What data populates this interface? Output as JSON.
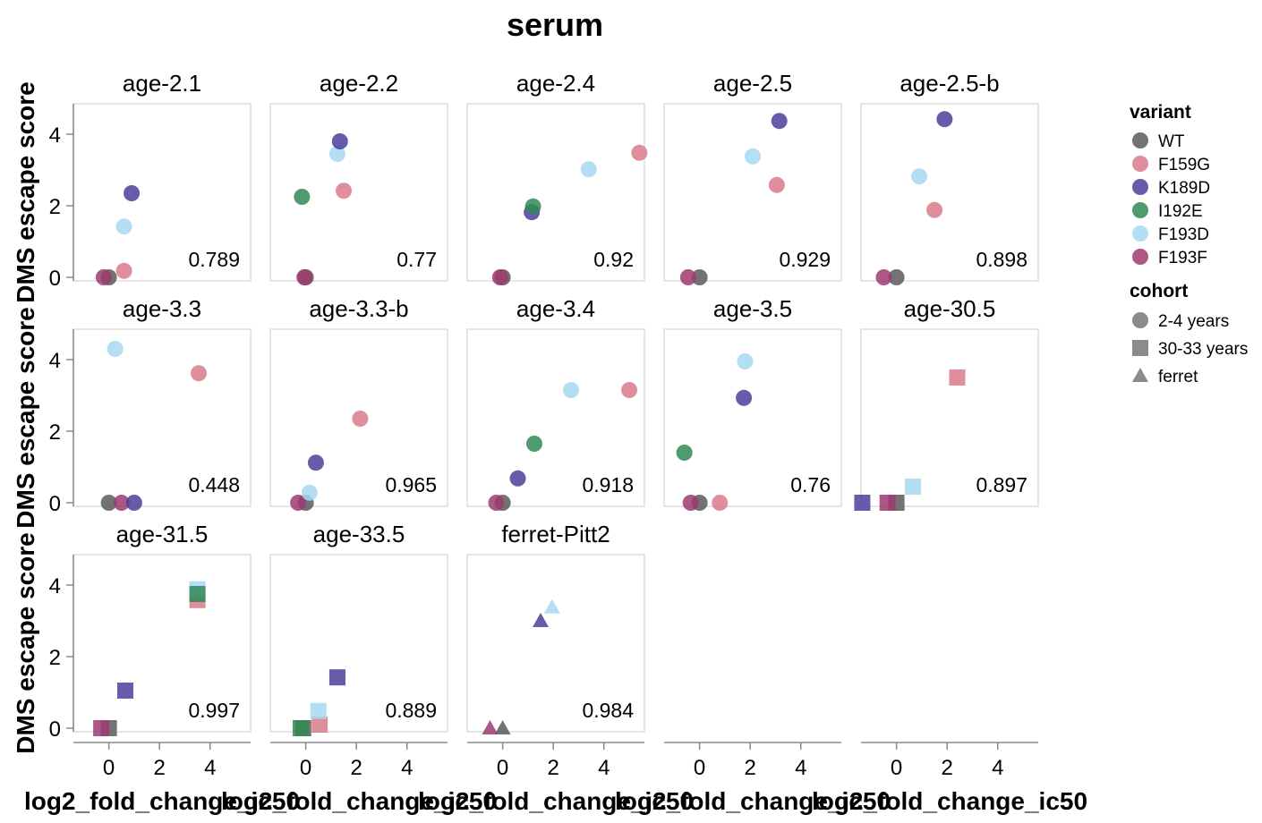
{
  "chart_data": {
    "type": "scatter",
    "title": "serum",
    "xlabel": "log2_fold_change_ic50",
    "ylabel": "DMS escape score",
    "xlim": [
      -1.4,
      5.6
    ],
    "ylim": [
      0,
      4.5
    ],
    "x_ticks": [
      0,
      2,
      4
    ],
    "y_ticks": [
      0,
      2,
      4
    ],
    "grid": false,
    "legend_position": "right",
    "variant_legend_title": "variant",
    "cohort_legend_title": "cohort",
    "variants": [
      {
        "name": "WT",
        "color": "#5a5a5a"
      },
      {
        "name": "F159G",
        "color": "#d97a8b"
      },
      {
        "name": "K189D",
        "color": "#4b3f9a"
      },
      {
        "name": "I192E",
        "color": "#2f8a55"
      },
      {
        "name": "F193D",
        "color": "#a6d8f2"
      },
      {
        "name": "F193F",
        "color": "#9e3a70"
      }
    ],
    "cohorts": [
      {
        "name": "2-4 years",
        "shape": "circle"
      },
      {
        "name": "30-33 years",
        "shape": "square"
      },
      {
        "name": "ferret",
        "shape": "triangle"
      }
    ],
    "panels": [
      {
        "name": "age-2.1",
        "cohort": "2-4 years",
        "corr": "0.789",
        "points": [
          {
            "variant": "WT",
            "x": 0.0,
            "y": 0.0
          },
          {
            "variant": "F193F",
            "x": -0.2,
            "y": 0.0
          },
          {
            "variant": "F159G",
            "x": 0.6,
            "y": 0.18
          },
          {
            "variant": "F193D",
            "x": 0.6,
            "y": 1.42
          },
          {
            "variant": "K189D",
            "x": 0.9,
            "y": 2.35
          }
        ]
      },
      {
        "name": "age-2.2",
        "cohort": "2-4 years",
        "corr": "0.77",
        "points": [
          {
            "variant": "WT",
            "x": 0.0,
            "y": 0.0
          },
          {
            "variant": "F193F",
            "x": -0.05,
            "y": 0.0
          },
          {
            "variant": "I192E",
            "x": -0.15,
            "y": 2.25
          },
          {
            "variant": "F159G",
            "x": 1.5,
            "y": 2.42
          },
          {
            "variant": "F193D",
            "x": 1.25,
            "y": 3.45
          },
          {
            "variant": "K189D",
            "x": 1.35,
            "y": 3.8
          }
        ]
      },
      {
        "name": "age-2.4",
        "cohort": "2-4 years",
        "corr": "0.92",
        "points": [
          {
            "variant": "WT",
            "x": 0.0,
            "y": 0.0
          },
          {
            "variant": "F193F",
            "x": -0.1,
            "y": 0.0
          },
          {
            "variant": "K189D",
            "x": 1.15,
            "y": 1.82
          },
          {
            "variant": "I192E",
            "x": 1.2,
            "y": 1.98
          },
          {
            "variant": "F193D",
            "x": 3.4,
            "y": 3.02
          },
          {
            "variant": "F159G",
            "x": 5.4,
            "y": 3.48
          }
        ]
      },
      {
        "name": "age-2.5",
        "cohort": "2-4 years",
        "corr": "0.929",
        "points": [
          {
            "variant": "WT",
            "x": 0.0,
            "y": 0.0
          },
          {
            "variant": "F193F",
            "x": -0.45,
            "y": 0.0
          },
          {
            "variant": "F159G",
            "x": 3.05,
            "y": 2.58
          },
          {
            "variant": "F193D",
            "x": 2.1,
            "y": 3.38
          },
          {
            "variant": "K189D",
            "x": 3.15,
            "y": 4.37
          }
        ]
      },
      {
        "name": "age-2.5-b",
        "cohort": "2-4 years",
        "corr": "0.898",
        "points": [
          {
            "variant": "WT",
            "x": 0.0,
            "y": 0.0
          },
          {
            "variant": "F193F",
            "x": -0.5,
            "y": 0.0
          },
          {
            "variant": "F159G",
            "x": 1.5,
            "y": 1.88
          },
          {
            "variant": "F193D",
            "x": 0.9,
            "y": 2.82
          },
          {
            "variant": "K189D",
            "x": 1.9,
            "y": 4.42
          }
        ]
      },
      {
        "name": "age-3.3",
        "cohort": "2-4 years",
        "corr": "0.448",
        "points": [
          {
            "variant": "WT",
            "x": 0.0,
            "y": 0.0
          },
          {
            "variant": "F193F",
            "x": 0.5,
            "y": 0.0
          },
          {
            "variant": "K189D",
            "x": 1.0,
            "y": 0.0
          },
          {
            "variant": "F193D",
            "x": 0.25,
            "y": 4.3
          },
          {
            "variant": "F159G",
            "x": 3.55,
            "y": 3.62
          }
        ]
      },
      {
        "name": "age-3.3-b",
        "cohort": "2-4 years",
        "corr": "0.965",
        "points": [
          {
            "variant": "WT",
            "x": 0.0,
            "y": 0.0
          },
          {
            "variant": "F193F",
            "x": -0.3,
            "y": 0.0
          },
          {
            "variant": "F193D",
            "x": 0.15,
            "y": 0.28
          },
          {
            "variant": "K189D",
            "x": 0.4,
            "y": 1.12
          },
          {
            "variant": "F159G",
            "x": 2.15,
            "y": 2.35
          }
        ]
      },
      {
        "name": "age-3.4",
        "cohort": "2-4 years",
        "corr": "0.918",
        "points": [
          {
            "variant": "WT",
            "x": 0.0,
            "y": 0.0
          },
          {
            "variant": "F193F",
            "x": -0.25,
            "y": 0.0
          },
          {
            "variant": "K189D",
            "x": 0.6,
            "y": 0.68
          },
          {
            "variant": "I192E",
            "x": 1.25,
            "y": 1.65
          },
          {
            "variant": "F193D",
            "x": 2.7,
            "y": 3.15
          },
          {
            "variant": "F159G",
            "x": 5.0,
            "y": 3.15
          }
        ]
      },
      {
        "name": "age-3.5",
        "cohort": "2-4 years",
        "corr": "0.76",
        "points": [
          {
            "variant": "WT",
            "x": 0.0,
            "y": 0.0
          },
          {
            "variant": "F193F",
            "x": -0.35,
            "y": 0.0
          },
          {
            "variant": "F159G",
            "x": 0.8,
            "y": 0.0
          },
          {
            "variant": "I192E",
            "x": -0.6,
            "y": 1.4
          },
          {
            "variant": "K189D",
            "x": 1.75,
            "y": 2.93
          },
          {
            "variant": "F193D",
            "x": 1.8,
            "y": 3.95
          }
        ]
      },
      {
        "name": "age-30.5",
        "cohort": "30-33 years",
        "corr": "0.897",
        "points": [
          {
            "variant": "WT",
            "x": 0.0,
            "y": 0.0
          },
          {
            "variant": "F193F",
            "x": -0.35,
            "y": 0.0
          },
          {
            "variant": "K189D",
            "x": -1.35,
            "y": 0.0
          },
          {
            "variant": "F193D",
            "x": 0.65,
            "y": 0.45
          },
          {
            "variant": "F159G",
            "x": 2.4,
            "y": 3.5
          }
        ]
      },
      {
        "name": "age-31.5",
        "cohort": "30-33 years",
        "corr": "0.997",
        "points": [
          {
            "variant": "WT",
            "x": 0.0,
            "y": 0.0
          },
          {
            "variant": "F193F",
            "x": -0.3,
            "y": 0.0
          },
          {
            "variant": "K189D",
            "x": 0.65,
            "y": 1.05
          },
          {
            "variant": "F159G",
            "x": 3.5,
            "y": 3.58
          },
          {
            "variant": "F193D",
            "x": 3.5,
            "y": 3.88
          },
          {
            "variant": "I192E",
            "x": 3.5,
            "y": 3.75
          }
        ]
      },
      {
        "name": "age-33.5",
        "cohort": "30-33 years",
        "corr": "0.889",
        "points": [
          {
            "variant": "WT",
            "x": -0.1,
            "y": 0.0
          },
          {
            "variant": "I192E",
            "x": -0.2,
            "y": 0.0
          },
          {
            "variant": "F159G",
            "x": 0.55,
            "y": 0.1
          },
          {
            "variant": "F193D",
            "x": 0.5,
            "y": 0.48
          },
          {
            "variant": "K189D",
            "x": 1.25,
            "y": 1.42
          }
        ]
      },
      {
        "name": "ferret-Pitt2",
        "cohort": "ferret",
        "corr": "0.984",
        "points": [
          {
            "variant": "WT",
            "x": 0.0,
            "y": 0.0
          },
          {
            "variant": "F193F",
            "x": -0.5,
            "y": 0.0
          },
          {
            "variant": "K189D",
            "x": 1.5,
            "y": 3.0
          },
          {
            "variant": "F193D",
            "x": 1.95,
            "y": 3.38
          }
        ]
      }
    ]
  }
}
